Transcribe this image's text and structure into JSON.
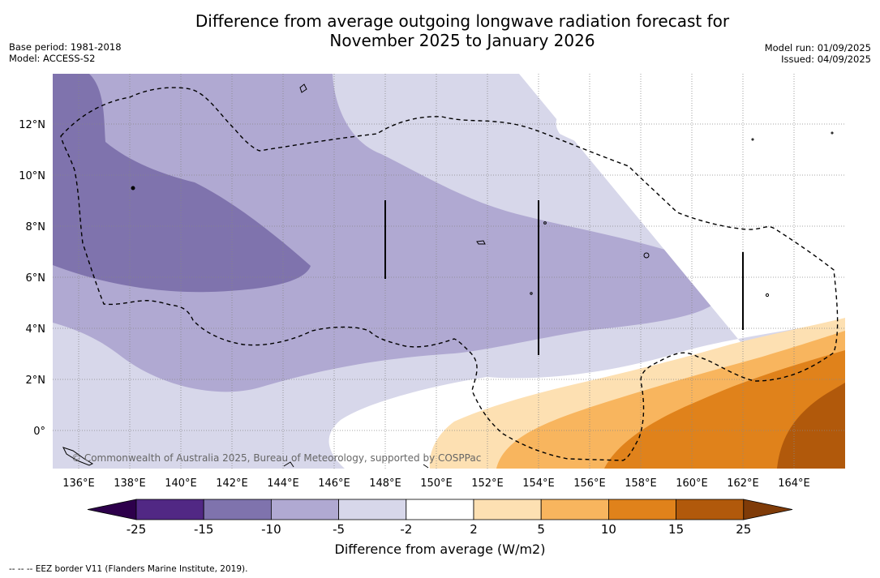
{
  "title_line1": "Difference from average outgoing longwave radiation forecast for",
  "title_line2": "November 2025 to January 2026",
  "base_period": "Base period: 1981-2018",
  "model": "Model: ACCESS-S2",
  "model_run": "Model run: 01/09/2025",
  "issued": "Issued: 04/09/2025",
  "copyright": "© Commonwealth of Australia 2025, Bureau of Meteorology, supported by COSPPac",
  "colorbar_label": "Difference from average (W/m2)",
  "footer": "--  --  -- EEZ border V11 (Flanders Marine Institute, 2019).",
  "lon_labels": [
    "136°E",
    "138°E",
    "140°E",
    "142°E",
    "144°E",
    "146°E",
    "148°E",
    "150°E",
    "152°E",
    "154°E",
    "156°E",
    "158°E",
    "160°E",
    "162°E",
    "164°E"
  ],
  "lat_labels": [
    "12°N",
    "10°N",
    "8°N",
    "6°N",
    "4°N",
    "2°N",
    "0°"
  ],
  "colorbar_ticks": [
    "-25",
    "-15",
    "-10",
    "-5",
    "-2",
    "2",
    "5",
    "10",
    "15",
    "25"
  ],
  "colorbar_colors": [
    "#512884",
    "#7f73ad",
    "#b0a9d2",
    "#d7d7ea",
    "#ffffff",
    "#fde0b2",
    "#f8b55e",
    "#e0821b",
    "#b1590b"
  ],
  "colorbar_ext_low": "#2d004b",
  "colorbar_ext_high": "#7f3b08"
}
